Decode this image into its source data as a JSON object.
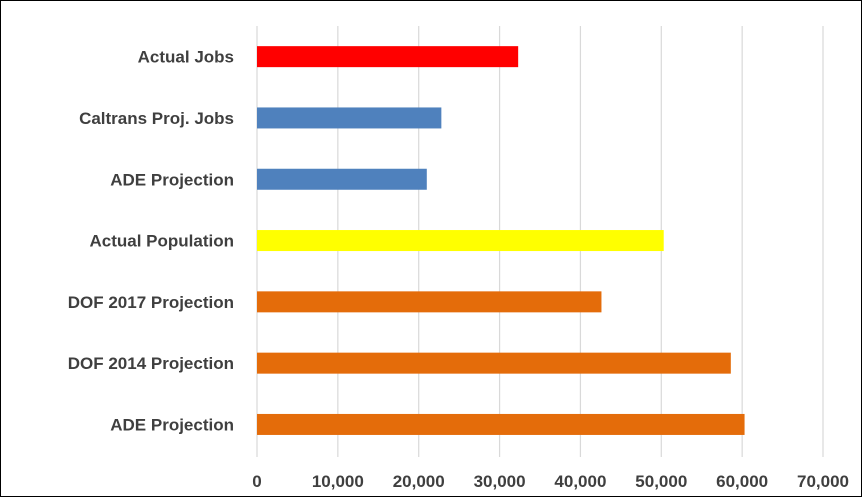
{
  "chart_data": {
    "type": "bar",
    "orientation": "horizontal",
    "categories": [
      "Actual Jobs",
      "Caltrans Proj. Jobs",
      "ADE Projection",
      "Actual Population",
      "DOF 2017 Projection",
      "DOF 2014 Projection",
      "ADE Projection"
    ],
    "values": [
      32300,
      22800,
      21000,
      50300,
      42600,
      58600,
      60300
    ],
    "bar_colors": [
      "#ff0000",
      "#4f81bd",
      "#4f81bd",
      "#ffff00",
      "#e46c0a",
      "#e46c0a",
      "#e46c0a"
    ],
    "x_ticks": [
      "0",
      "10,000",
      "20,000",
      "30,000",
      "40,000",
      "50,000",
      "60,000",
      "70,000"
    ],
    "xlim": [
      0,
      70000
    ],
    "grid": true,
    "title": "",
    "xlabel": "",
    "ylabel": ""
  }
}
